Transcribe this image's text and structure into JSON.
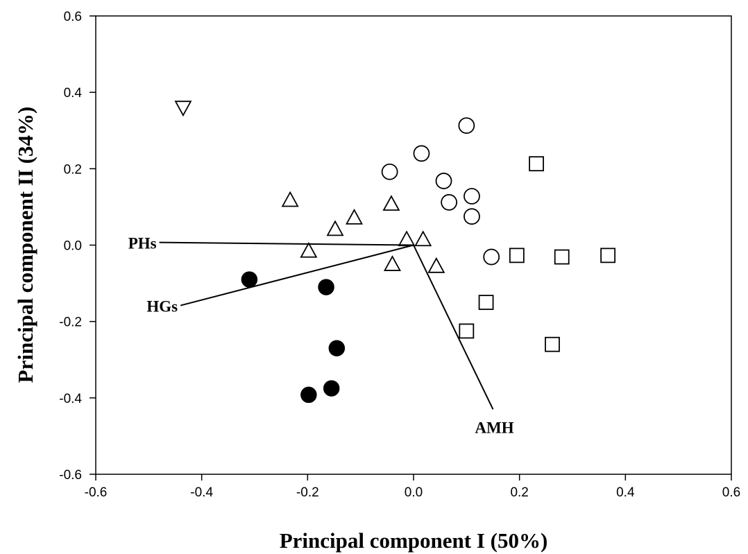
{
  "chart_data": {
    "type": "scatter",
    "xlabel": "Principal component I (50%)",
    "ylabel": "Principal component II (34%)",
    "xlim": [
      -0.6,
      0.6
    ],
    "ylim": [
      -0.6,
      0.6
    ],
    "x_ticks": [
      "-0.6",
      "-0.4",
      "-0.2",
      "0.0",
      "0.2",
      "0.4",
      "0.6"
    ],
    "y_ticks": [
      "-0.6",
      "-0.4",
      "-0.2",
      "0.0",
      "0.2",
      "0.4",
      "0.6"
    ],
    "grid": false,
    "series": [
      {
        "marker": "filled-circle",
        "points": [
          [
            -0.31,
            -0.09
          ],
          [
            -0.165,
            -0.11
          ],
          [
            -0.145,
            -0.27
          ],
          [
            -0.155,
            -0.375
          ],
          [
            -0.198,
            -0.392
          ]
        ]
      },
      {
        "marker": "open-triangle-up",
        "points": [
          [
            -0.233,
            0.118
          ],
          [
            -0.148,
            0.042
          ],
          [
            -0.112,
            0.072
          ],
          [
            -0.042,
            0.108
          ],
          [
            -0.198,
            -0.015
          ],
          [
            -0.013,
            0.015
          ],
          [
            0.018,
            0.015
          ],
          [
            -0.04,
            -0.05
          ],
          [
            0.043,
            -0.055
          ]
        ]
      },
      {
        "marker": "open-circle",
        "points": [
          [
            -0.045,
            0.192
          ],
          [
            0.015,
            0.24
          ],
          [
            0.1,
            0.313
          ],
          [
            0.057,
            0.168
          ],
          [
            0.067,
            0.112
          ],
          [
            0.11,
            0.128
          ],
          [
            0.11,
            0.075
          ],
          [
            0.147,
            -0.031
          ]
        ]
      },
      {
        "marker": "open-square",
        "points": [
          [
            0.232,
            0.213
          ],
          [
            0.195,
            -0.027
          ],
          [
            0.28,
            -0.031
          ],
          [
            0.367,
            -0.027
          ],
          [
            0.137,
            -0.15
          ],
          [
            0.1,
            -0.225
          ],
          [
            0.262,
            -0.26
          ]
        ]
      },
      {
        "marker": "open-triangle-down",
        "points": [
          [
            -0.435,
            0.36
          ]
        ]
      }
    ],
    "vectors": [
      {
        "label": "PHs",
        "from": [
          0.0,
          0.0
        ],
        "to": [
          -0.48,
          0.007
        ]
      },
      {
        "label": "HGs",
        "from": [
          0.0,
          0.0
        ],
        "to": [
          -0.44,
          -0.158
        ]
      },
      {
        "label": "AMH",
        "from": [
          0.0,
          0.0
        ],
        "to": [
          0.15,
          -0.43
        ]
      }
    ]
  }
}
